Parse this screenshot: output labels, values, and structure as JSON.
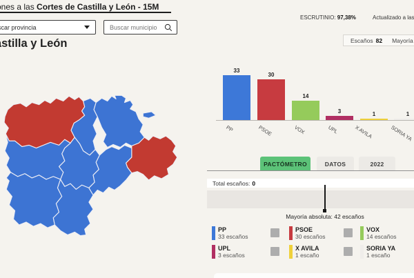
{
  "header": {
    "title_prefix": "Elecciones a las ",
    "title_bold": "Cortes de Castilla y León - 15M",
    "escrutinio_label": "ESCRUTINIO: ",
    "escrutinio_value": "97,38%",
    "updated_label": "Actualizado a las:"
  },
  "controls": {
    "province_select_value": "Buscar provincia",
    "municipality_placeholder": "Buscar municipio"
  },
  "summary_box": {
    "seats_label": "Escaños",
    "seats_value": "82",
    "majority_label": "Mayoría absoluta"
  },
  "region_title": "Castilla y León",
  "chart_data": {
    "type": "bar",
    "title": "",
    "xlabel": "",
    "ylabel": "Escaños",
    "categories": [
      "PP",
      "PSOE",
      "VOX",
      "UPL",
      "X AVILA",
      "SORIA YA"
    ],
    "values": [
      33,
      30,
      14,
      3,
      1,
      1
    ],
    "colors": [
      "#3d78d8",
      "#c73b40",
      "#95cb5b",
      "#b12f62",
      "#efd13b",
      "#efedea"
    ],
    "ylim": [
      0,
      33
    ],
    "grid": false,
    "value_labels": true
  },
  "tabs": [
    {
      "label": "PACTÓMETRO",
      "active": true
    },
    {
      "label": "DATOS",
      "active": false
    },
    {
      "label": "2022",
      "active": false
    }
  ],
  "pactometro": {
    "total_label": "Total escaños:",
    "total_value": "0",
    "majority_marker_text": "Mayoría absoluta: 42 escaños"
  },
  "legend": [
    {
      "party": "PP",
      "seats": "33 escaños",
      "color": "#3d78d8"
    },
    {
      "party": "PSOE",
      "seats": "30 escaños",
      "color": "#c73b40"
    },
    {
      "party": "VOX",
      "seats": "14 escaños",
      "color": "#95cb5b"
    },
    {
      "party": "UPL",
      "seats": "3 escaños",
      "color": "#b12f62"
    },
    {
      "party": "X AVILA",
      "seats": "1 escaño",
      "color": "#efd13b"
    },
    {
      "party": "SORIA YA",
      "seats": "1 escaño",
      "color": "#efedea"
    }
  ],
  "map": {
    "region": "Castilla y León",
    "win_colors": {
      "pp_blue": "#3d74d3",
      "psoe_red": "#c23a31"
    },
    "provinces": [
      {
        "name": "León",
        "color": "#c23a31"
      },
      {
        "name": "Palencia",
        "color": "#3d74d3"
      },
      {
        "name": "Burgos",
        "color": "#3d74d3"
      },
      {
        "name": "Soria",
        "color": "#c23a31"
      },
      {
        "name": "Valladolid",
        "color": "#3d74d3"
      },
      {
        "name": "Zamora",
        "color": "#3d74d3"
      },
      {
        "name": "Salamanca",
        "color": "#3d74d3"
      },
      {
        "name": "Ávila",
        "color": "#3d74d3"
      },
      {
        "name": "Segovia",
        "color": "#3d74d3"
      }
    ]
  }
}
